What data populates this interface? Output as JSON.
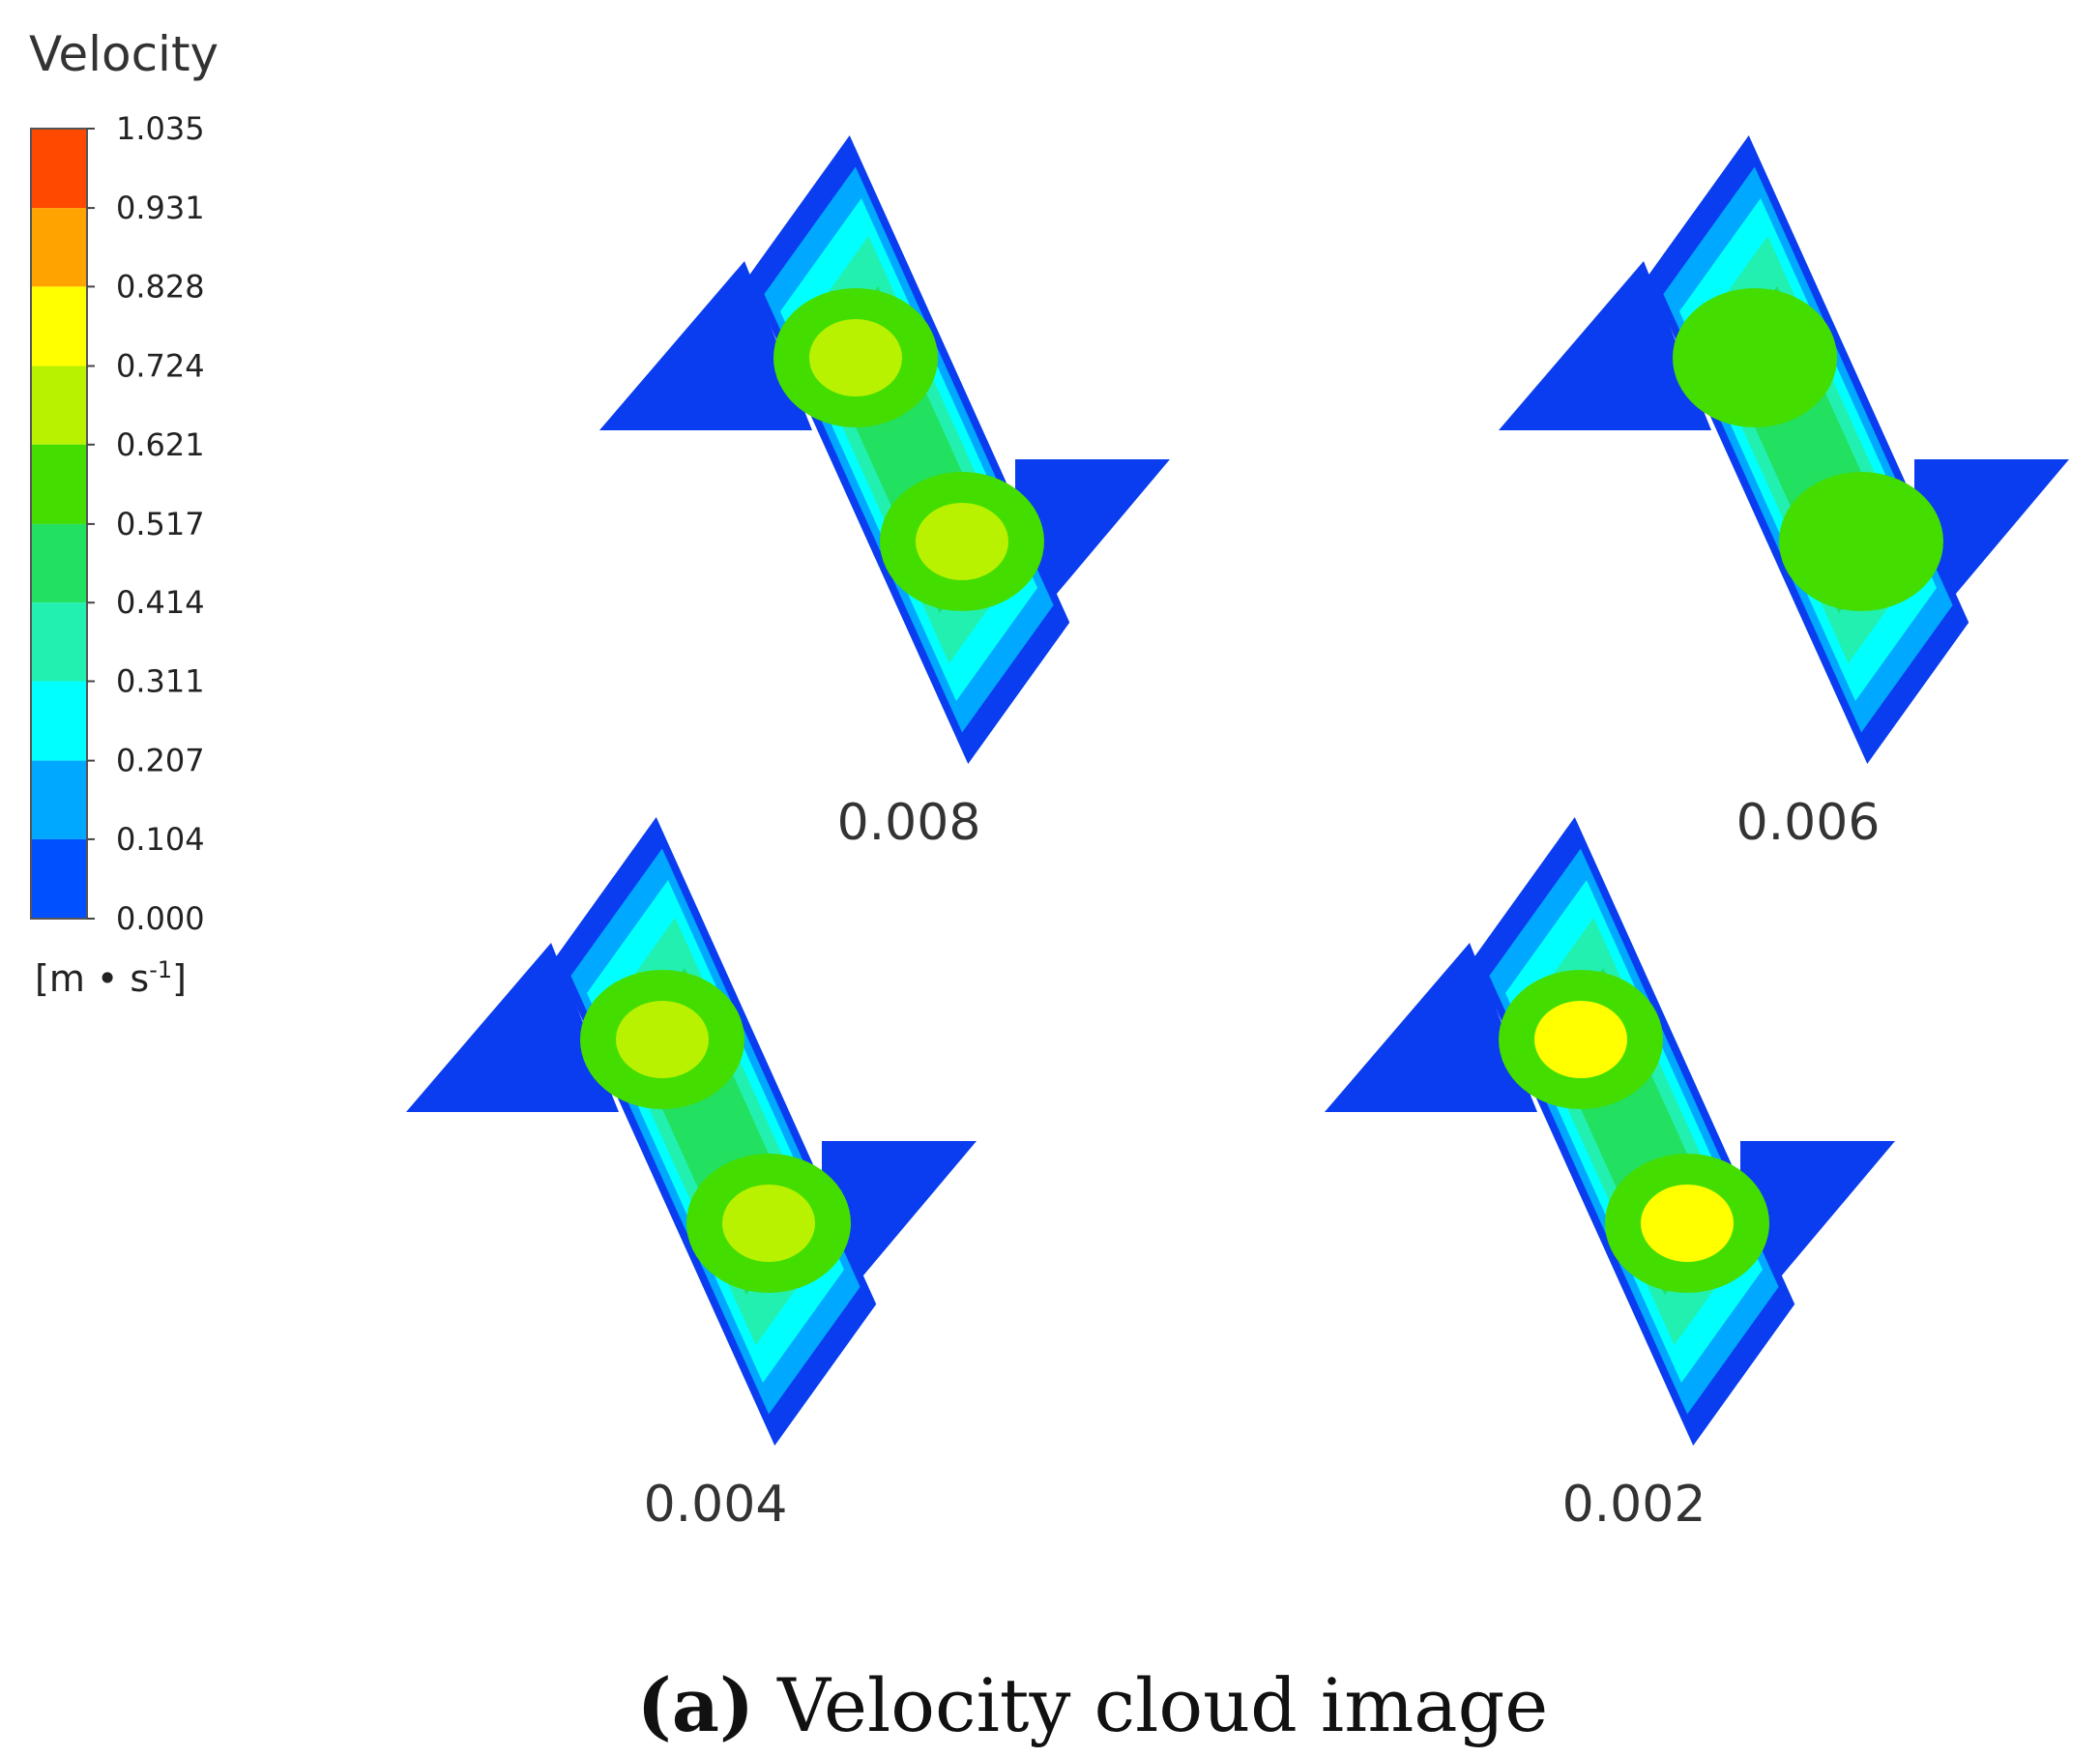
{
  "chart_data": {
    "type": "heatmap",
    "colorbar": {
      "title": "Velocity",
      "unit_prefix": "[m • s",
      "unit_exp": "-1",
      "unit_suffix": "]",
      "ticks": [
        "1.035",
        "0.931",
        "0.828",
        "0.724",
        "0.621",
        "0.517",
        "0.414",
        "0.311",
        "0.207",
        "0.104",
        "0.000"
      ],
      "tick_values": [
        1.035,
        0.931,
        0.828,
        0.724,
        0.621,
        0.517,
        0.414,
        0.311,
        0.207,
        0.104,
        0.0
      ],
      "bands": [
        "#ff4800",
        "#ffa300",
        "#ffff00",
        "#b8f200",
        "#44dd00",
        "#22e060",
        "#22f0b0",
        "#00ffff",
        "#00a8ff",
        "#0050ff"
      ],
      "outer_color": "#0a3cf0"
    },
    "panels": [
      {
        "label": "0.008",
        "peak_color": "#b8f200"
      },
      {
        "label": "0.006",
        "peak_color": "#44dd00"
      },
      {
        "label": "0.004",
        "peak_color": "#b8f200"
      },
      {
        "label": "0.002",
        "peak_color": "#ffff00"
      }
    ]
  },
  "caption": {
    "letter": "a",
    "text": " Velocity cloud image"
  }
}
